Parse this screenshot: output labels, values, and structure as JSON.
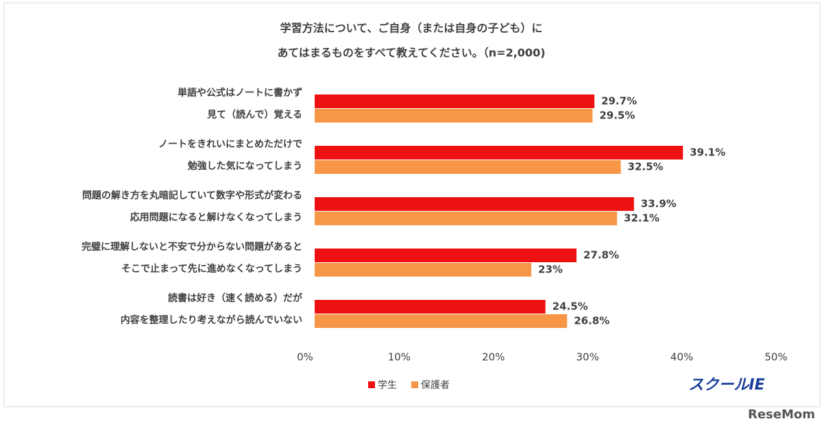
{
  "chart_data": {
    "type": "barh",
    "title": [
      "学習方法について、ご自身（または自身の子ども）に",
      "あてはまるものをすべて教えてください。（n=2,000)"
    ],
    "categories": [
      [
        "単語や公式はノートに書かず",
        "見て（読んで）覚える"
      ],
      [
        "ノートをきれいにまとめただけで",
        "勉強した気になってしまう"
      ],
      [
        "問題の解き方を丸暗記していて数字や形式が変わる",
        "応用問題になると解けなくなってしまう"
      ],
      [
        "完璧に理解しないと不安で分からない問題があると",
        "そこで止まって先に進めなくなってしまう"
      ],
      [
        "読書は好き（速く読める）だが",
        "内容を整理したり考えながら読んでいない"
      ]
    ],
    "series": [
      {
        "name": "学生",
        "color": "#ee1111",
        "values": [
          29.7,
          39.1,
          33.9,
          27.8,
          24.5
        ],
        "value_labels": [
          "29.7%",
          "39.1%",
          "33.9%",
          "27.8%",
          "24.5%"
        ]
      },
      {
        "name": "保護者",
        "color": "#f79646",
        "values": [
          29.5,
          32.5,
          32.1,
          23,
          26.8
        ],
        "value_labels": [
          "29.5%",
          "32.5%",
          "32.1%",
          "23%",
          "26.8%"
        ]
      }
    ],
    "xlim": [
      0,
      50
    ],
    "xticks": [
      {
        "value": 0,
        "label": "0%"
      },
      {
        "value": 10,
        "label": "10%"
      },
      {
        "value": 20,
        "label": "20%"
      },
      {
        "value": 30,
        "label": "30%"
      },
      {
        "value": 40,
        "label": "40%"
      },
      {
        "value": 50,
        "label": "50%"
      }
    ],
    "legend": "bottom",
    "logo": "スクールIE",
    "watermark": "ReseMom"
  }
}
